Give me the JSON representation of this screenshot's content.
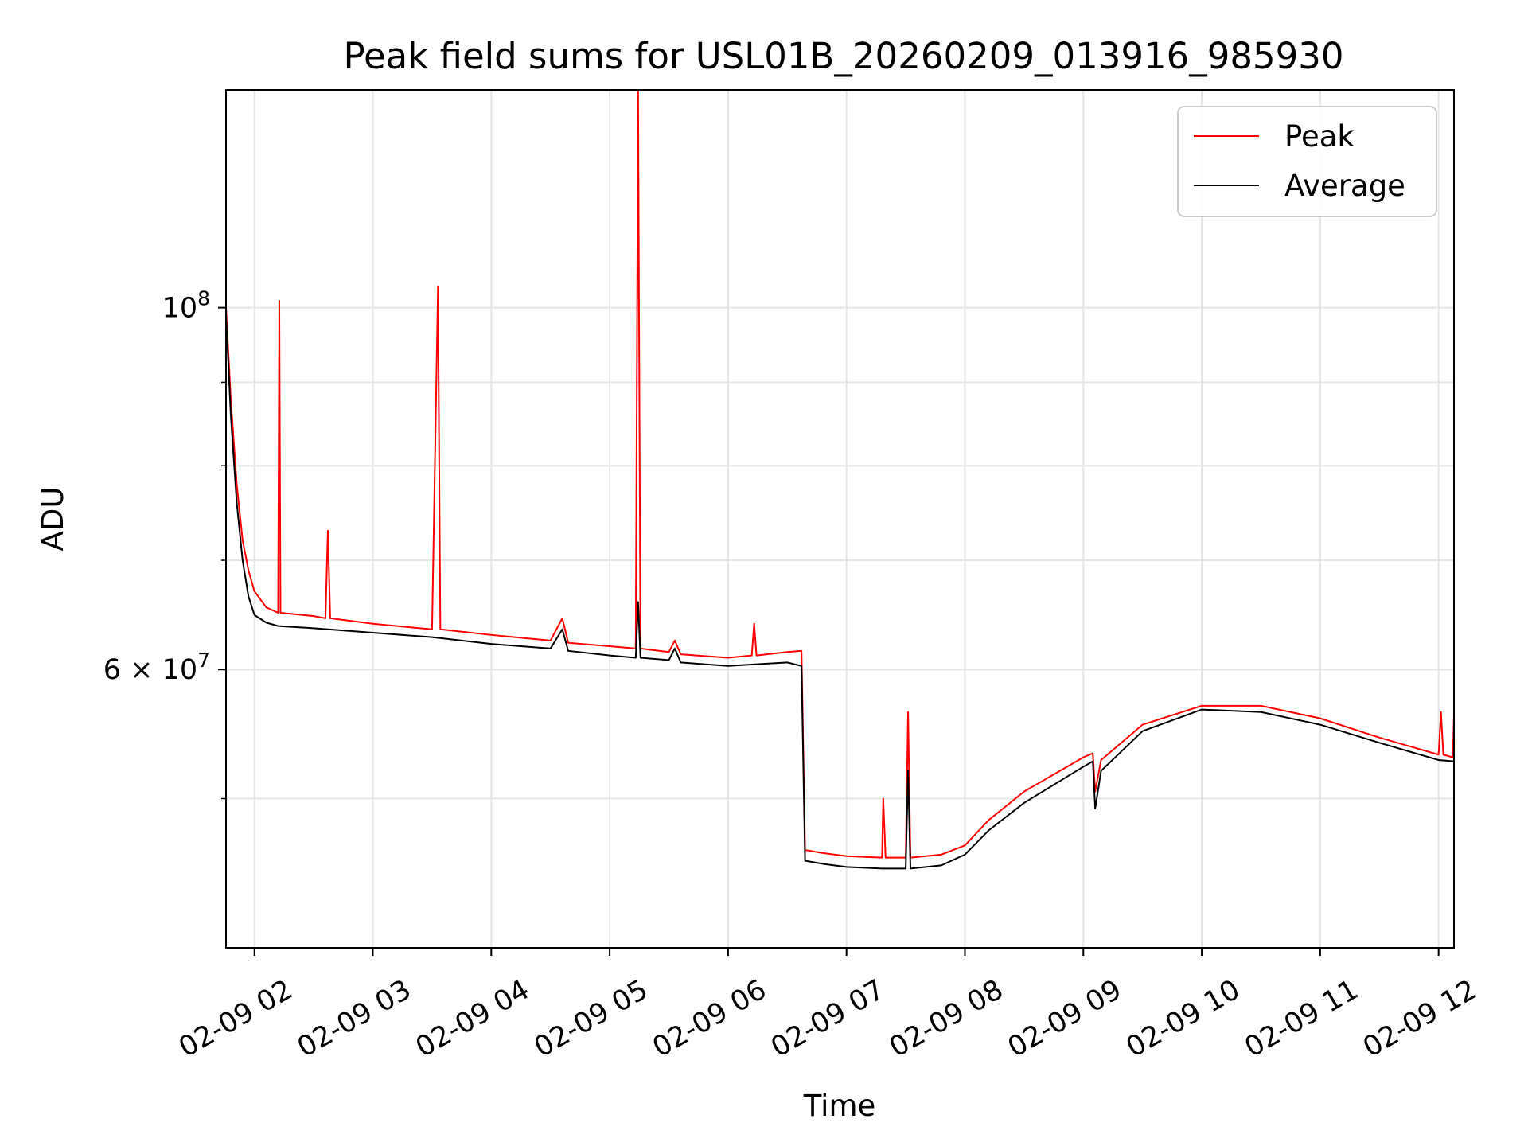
{
  "chart_data": {
    "type": "line",
    "title": "Peak field sums for USL01B_20260209_013916_985930",
    "xlabel": "Time",
    "ylabel": "ADU",
    "yscale": "log",
    "xlim": [
      -0.24,
      10.13
    ],
    "ylim": [
      40500000,
      136000000
    ],
    "x_unit": "hours since 02-09 02:00",
    "x_ticks": [
      {
        "value": 0,
        "label": "02-09 02"
      },
      {
        "value": 1,
        "label": "02-09 03"
      },
      {
        "value": 2,
        "label": "02-09 04"
      },
      {
        "value": 3,
        "label": "02-09 05"
      },
      {
        "value": 4,
        "label": "02-09 06"
      },
      {
        "value": 5,
        "label": "02-09 07"
      },
      {
        "value": 6,
        "label": "02-09 08"
      },
      {
        "value": 7,
        "label": "02-09 09"
      },
      {
        "value": 8,
        "label": "02-09 10"
      },
      {
        "value": 9,
        "label": "02-09 11"
      },
      {
        "value": 10,
        "label": "02-09 12"
      }
    ],
    "y_major_ticks": [
      {
        "value": 100000000,
        "mantissa": "",
        "base": "10",
        "exp": "8"
      },
      {
        "value": 60000000,
        "mantissa": "6 × ",
        "base": "10",
        "exp": "7"
      }
    ],
    "y_minor_ticks": [
      50000000,
      70000000,
      80000000,
      90000000
    ],
    "grid": true,
    "legend_position": "top-right",
    "series": [
      {
        "name": "Peak",
        "color": "#ff0000",
        "points": [
          [
            -0.24,
            100000000
          ],
          [
            -0.2,
            88000000
          ],
          [
            -0.15,
            78000000
          ],
          [
            -0.1,
            72000000
          ],
          [
            -0.05,
            69000000
          ],
          [
            0.0,
            67000000
          ],
          [
            0.1,
            65500000
          ],
          [
            0.2,
            65000000
          ],
          [
            0.21,
            101000000
          ],
          [
            0.22,
            65000000
          ],
          [
            0.5,
            64700000
          ],
          [
            0.6,
            64500000
          ],
          [
            0.62,
            73000000
          ],
          [
            0.64,
            64500000
          ],
          [
            1.0,
            64000000
          ],
          [
            1.5,
            63500000
          ],
          [
            1.55,
            103000000
          ],
          [
            1.57,
            63500000
          ],
          [
            2.0,
            63000000
          ],
          [
            2.5,
            62500000
          ],
          [
            2.6,
            64500000
          ],
          [
            2.65,
            62300000
          ],
          [
            3.0,
            62000000
          ],
          [
            3.22,
            61800000
          ],
          [
            3.24,
            136000000
          ],
          [
            3.26,
            61800000
          ],
          [
            3.5,
            61500000
          ],
          [
            3.55,
            62500000
          ],
          [
            3.6,
            61300000
          ],
          [
            4.0,
            61000000
          ],
          [
            4.2,
            61200000
          ],
          [
            4.22,
            64000000
          ],
          [
            4.24,
            61200000
          ],
          [
            4.5,
            61500000
          ],
          [
            4.62,
            61600000
          ],
          [
            4.65,
            46500000
          ],
          [
            4.8,
            46300000
          ],
          [
            5.0,
            46100000
          ],
          [
            5.3,
            46000000
          ],
          [
            5.31,
            50000000
          ],
          [
            5.33,
            46000000
          ],
          [
            5.5,
            46000000
          ],
          [
            5.52,
            56500000
          ],
          [
            5.54,
            46000000
          ],
          [
            5.8,
            46200000
          ],
          [
            6.0,
            46800000
          ],
          [
            6.2,
            48500000
          ],
          [
            6.5,
            50500000
          ],
          [
            7.0,
            53000000
          ],
          [
            7.08,
            53300000
          ],
          [
            7.1,
            50500000
          ],
          [
            7.15,
            52800000
          ],
          [
            7.5,
            55500000
          ],
          [
            8.0,
            57000000
          ],
          [
            8.5,
            57000000
          ],
          [
            9.0,
            56000000
          ],
          [
            9.5,
            54500000
          ],
          [
            10.0,
            53200000
          ],
          [
            10.02,
            56500000
          ],
          [
            10.04,
            53200000
          ],
          [
            10.12,
            53000000
          ],
          [
            10.13,
            56300000
          ]
        ]
      },
      {
        "name": "Average",
        "color": "#000000",
        "points": [
          [
            -0.24,
            99000000
          ],
          [
            -0.2,
            86000000
          ],
          [
            -0.15,
            76000000
          ],
          [
            -0.1,
            70000000
          ],
          [
            -0.05,
            66500000
          ],
          [
            0.0,
            64800000
          ],
          [
            0.1,
            64100000
          ],
          [
            0.2,
            63800000
          ],
          [
            0.5,
            63600000
          ],
          [
            1.0,
            63200000
          ],
          [
            1.5,
            62800000
          ],
          [
            2.0,
            62200000
          ],
          [
            2.5,
            61800000
          ],
          [
            2.6,
            63500000
          ],
          [
            2.65,
            61600000
          ],
          [
            3.0,
            61200000
          ],
          [
            3.22,
            61000000
          ],
          [
            3.24,
            66000000
          ],
          [
            3.26,
            61000000
          ],
          [
            3.5,
            60800000
          ],
          [
            3.55,
            61800000
          ],
          [
            3.6,
            60600000
          ],
          [
            4.0,
            60300000
          ],
          [
            4.5,
            60600000
          ],
          [
            4.62,
            60300000
          ],
          [
            4.65,
            45800000
          ],
          [
            4.8,
            45600000
          ],
          [
            5.0,
            45400000
          ],
          [
            5.3,
            45300000
          ],
          [
            5.5,
            45300000
          ],
          [
            5.52,
            52000000
          ],
          [
            5.54,
            45300000
          ],
          [
            5.8,
            45500000
          ],
          [
            6.0,
            46200000
          ],
          [
            6.2,
            47800000
          ],
          [
            6.5,
            49700000
          ],
          [
            7.0,
            52300000
          ],
          [
            7.08,
            52700000
          ],
          [
            7.1,
            49300000
          ],
          [
            7.15,
            52000000
          ],
          [
            7.5,
            55000000
          ],
          [
            8.0,
            56700000
          ],
          [
            8.5,
            56500000
          ],
          [
            9.0,
            55500000
          ],
          [
            9.5,
            54100000
          ],
          [
            10.0,
            52800000
          ],
          [
            10.13,
            52700000
          ]
        ]
      }
    ]
  }
}
